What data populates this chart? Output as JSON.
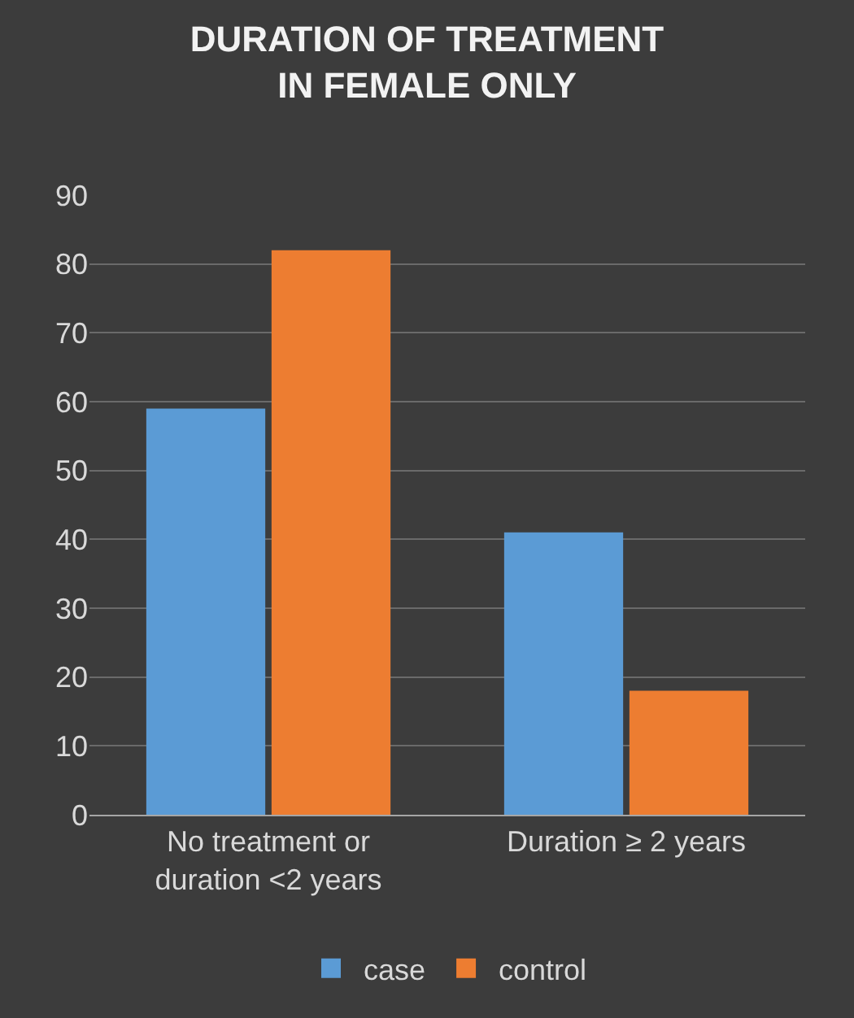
{
  "chart_data": {
    "type": "bar",
    "title": "DURATION OF TREATMENT IN FEMALE ONLY",
    "categories": [
      "No treatment or duration <2 years",
      "Duration ≥ 2 years"
    ],
    "series": [
      {
        "name": "case",
        "color": "#5b9bd5",
        "values": [
          59,
          41
        ]
      },
      {
        "name": "control",
        "color": "#ed7d31",
        "values": [
          82,
          18
        ]
      }
    ],
    "ylim": [
      0,
      90
    ],
    "yticks": [
      0,
      10,
      20,
      30,
      40,
      50,
      60,
      70,
      80,
      90
    ],
    "grid": "y",
    "legend": "bottom"
  }
}
